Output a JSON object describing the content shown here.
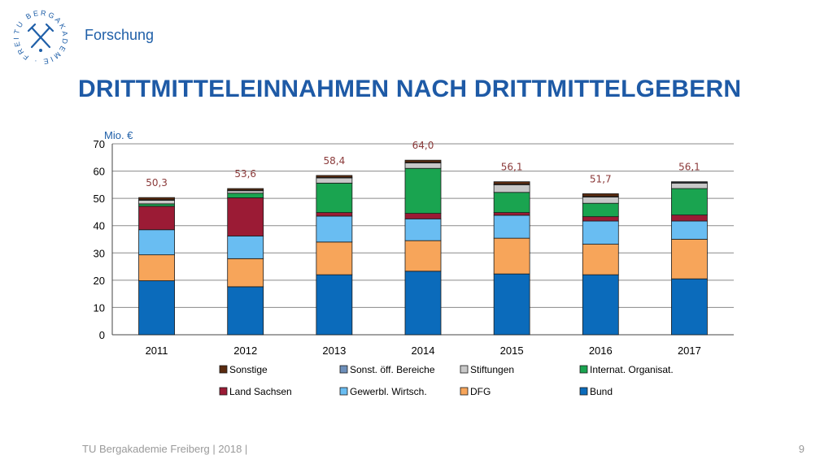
{
  "header": {
    "logo_text": "TU BERGAKADEMIE · FREIBERG ·",
    "section": "Forschung",
    "title": "DRITTMITTELEINNAHMEN NACH DRITTMITTELGEBERN"
  },
  "footer": {
    "text": "TU Bergakademie Freiberg | 2018 |",
    "page_number": "9"
  },
  "chart_data": {
    "type": "bar",
    "stacked": true,
    "unit_label": "Mio. €",
    "ylim": [
      0,
      70
    ],
    "yticks": [
      "0",
      "10",
      "20",
      "30",
      "40",
      "50",
      "60",
      "70"
    ],
    "grid": true,
    "legend_position": "bottom",
    "categories": [
      "2011",
      "2012",
      "2013",
      "2014",
      "2015",
      "2016",
      "2017"
    ],
    "totals": [
      "50,3",
      "53,6",
      "58,4",
      "64,0",
      "56,1",
      "51,7",
      "56,1"
    ],
    "series": [
      {
        "name": "Bund",
        "color": "#0b6bbb",
        "values": [
          19.8,
          17.6,
          22.0,
          23.3,
          22.3,
          22.0,
          20.5
        ]
      },
      {
        "name": "DFG",
        "color": "#f7a55a",
        "values": [
          9.5,
          10.3,
          12.0,
          11.2,
          13.1,
          11.2,
          14.5
        ]
      },
      {
        "name": "Gewerbl. Wirtsch.",
        "color": "#69bdf2",
        "values": [
          9.2,
          8.3,
          9.5,
          8.0,
          8.4,
          8.5,
          6.7
        ]
      },
      {
        "name": "Land Sachsen",
        "color": "#9b1b35",
        "values": [
          8.6,
          14.0,
          1.3,
          2.0,
          1.0,
          1.6,
          2.2
        ]
      },
      {
        "name": "Internat. Organisat.",
        "color": "#1aa450",
        "values": [
          0.9,
          1.7,
          10.8,
          16.5,
          7.4,
          4.9,
          9.7
        ]
      },
      {
        "name": "Stiftungen",
        "color": "#c8c8c8",
        "values": [
          1.3,
          0.9,
          1.9,
          2.0,
          2.8,
          2.3,
          2.0
        ]
      },
      {
        "name": "Sonst. öff. Bereiche",
        "color": "#6d8fba",
        "values": [
          0.2,
          0.2,
          0.2,
          0.2,
          0.2,
          0.2,
          0.3
        ]
      },
      {
        "name": "Sonstige",
        "color": "#5a2b0f",
        "values": [
          0.8,
          0.6,
          0.7,
          0.8,
          0.9,
          1.0,
          0.2
        ]
      }
    ],
    "legend_order": [
      "Sonstige",
      "Sonst. öff. Bereiche",
      "Stiftungen",
      "Internat. Organisat.",
      "Land Sachsen",
      "Gewerbl. Wirtsch.",
      "DFG",
      "Bund"
    ],
    "colors": {
      "axis_text": "#000000",
      "total_label": "#8b3a3a",
      "unit_label": "#1f5fa8",
      "grid": "#8a8a8a"
    }
  }
}
